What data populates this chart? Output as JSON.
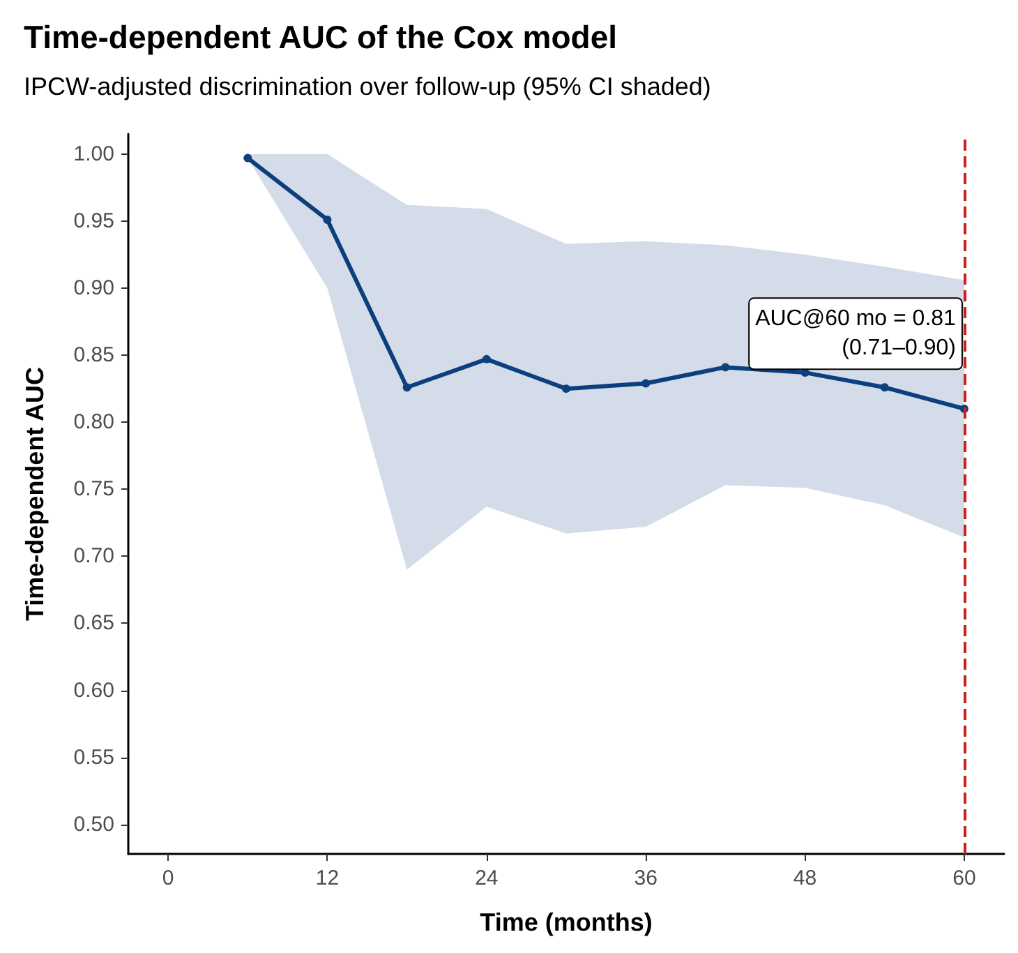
{
  "chart_data": {
    "type": "line",
    "title": "Time-dependent AUC of the Cox model",
    "subtitle": "IPCW-adjusted discrimination over follow-up (95% CI shaded)",
    "xlabel": "Time (months)",
    "ylabel": "Time-dependent AUC",
    "x": [
      6,
      12,
      18,
      24,
      30,
      36,
      42,
      48,
      54,
      60
    ],
    "series": [
      {
        "color": "#0d3f7e",
        "values": [
          0.997,
          0.951,
          0.826,
          0.847,
          0.825,
          0.829,
          0.841,
          0.837,
          0.826,
          0.81
        ],
        "lower": [
          0.997,
          0.9,
          0.69,
          0.737,
          0.717,
          0.722,
          0.753,
          0.751,
          0.738,
          0.714
        ],
        "upper": [
          1.0,
          1.0,
          0.962,
          0.959,
          0.933,
          0.935,
          0.932,
          0.925,
          0.916,
          0.906
        ]
      }
    ],
    "xlim": [
      -3,
      63
    ],
    "xticks": [
      0,
      12,
      24,
      36,
      48,
      60
    ],
    "ylim": [
      0.478,
      1.015
    ],
    "yticks": [
      {
        "value": 0.5,
        "label": "0.50"
      },
      0.55,
      {
        "value": 0.6,
        "label": "0.60"
      },
      0.65,
      {
        "value": 0.7,
        "label": "0.70"
      },
      0.75,
      {
        "value": 0.8,
        "label": "0.80"
      },
      0.85,
      {
        "value": 0.9,
        "label": "0.90"
      },
      0.95,
      {
        "value": 1.0,
        "label": "1.00"
      }
    ],
    "ref_lines": [
      {
        "axis": "x",
        "value": 60,
        "color": "#cc1f1f",
        "line_style": "dashed"
      }
    ],
    "annotations": [
      {
        "text": "AUC@60 mo = 0.81\n(0.71–0.90)",
        "x": 60,
        "y": 0.866
      }
    ],
    "grid": false,
    "marker": "circle",
    "line_style": "solid"
  }
}
